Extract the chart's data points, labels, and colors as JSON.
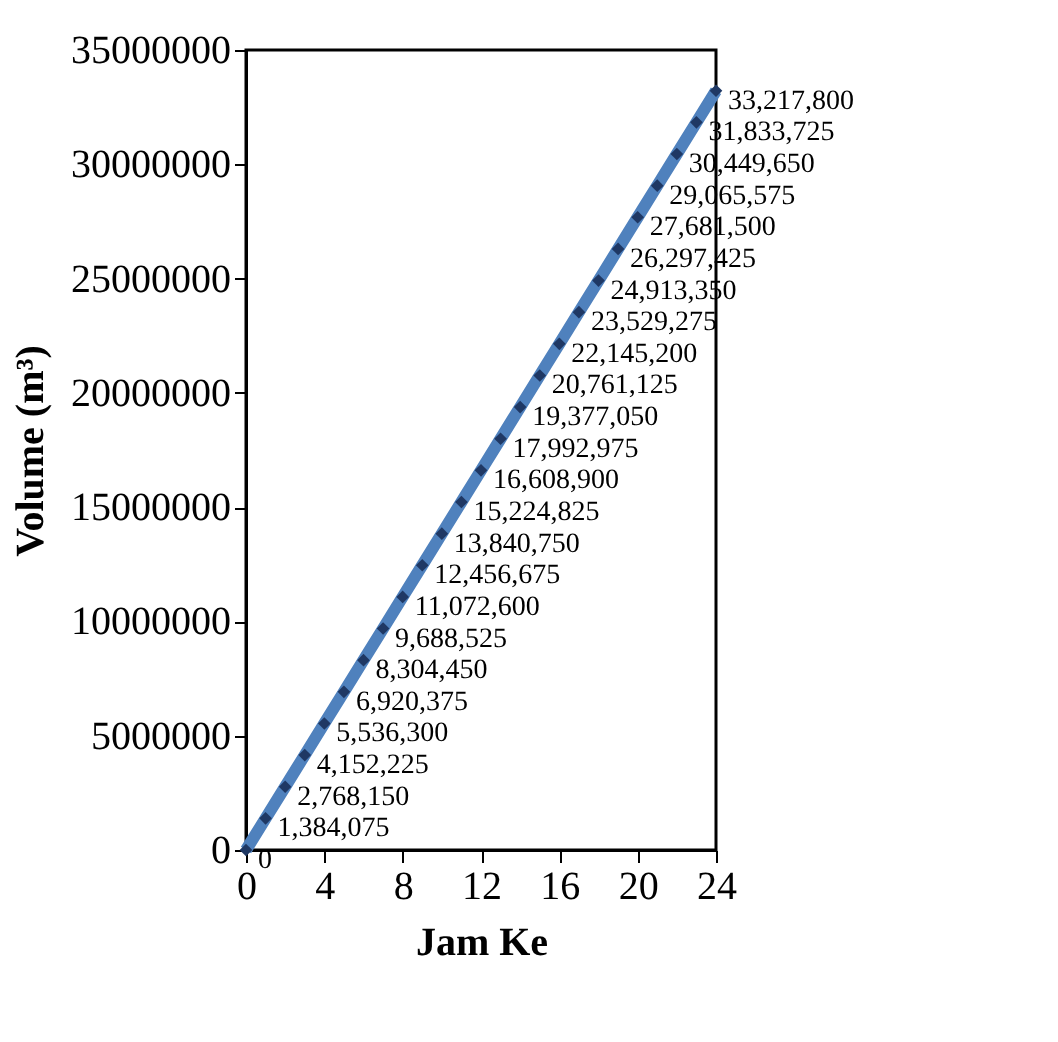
{
  "chart_data": {
    "type": "line",
    "xlabel": "Jam Ke",
    "ylabel": "Volume (m³)",
    "x": [
      0,
      1,
      2,
      3,
      4,
      5,
      6,
      7,
      8,
      9,
      10,
      11,
      12,
      13,
      14,
      15,
      16,
      17,
      18,
      19,
      20,
      21,
      22,
      23,
      24
    ],
    "series": [
      {
        "color": "#4f81bd",
        "values": [
          0,
          1384075,
          2768150,
          4152225,
          5536300,
          6920375,
          8304450,
          9688525,
          11072600,
          12456675,
          13840750,
          15224825,
          16608900,
          17992975,
          19377050,
          20761125,
          22145200,
          23529275,
          24913350,
          26297425,
          27681500,
          29065575,
          30449650,
          31833725,
          33217800
        ]
      }
    ],
    "xlim": [
      0,
      24
    ],
    "xticks": [
      0,
      4,
      8,
      12,
      16,
      20,
      24
    ],
    "ylim": [
      0,
      35000000
    ],
    "yticks": [
      0,
      5000000,
      10000000,
      15000000,
      20000000,
      25000000,
      30000000,
      35000000
    ],
    "value_labels": [
      "0",
      "1,384,075",
      "2,768,150",
      "4,152,225",
      "5,536,300",
      "6,920,375",
      "8,304,450",
      "9,688,525",
      "11,072,600",
      "12,456,675",
      "13,840,750",
      "15,224,825",
      "16,608,900",
      "17,992,975",
      "19,377,050",
      "20,761,125",
      "22,145,200",
      "23,529,275",
      "24,913,350",
      "26,297,425",
      "27,681,500",
      "29,065,575",
      "30,449,650",
      "31,833,725",
      "33,217,800"
    ],
    "marker": "diamond",
    "line_style": "solid",
    "grid": false,
    "legend": false
  }
}
